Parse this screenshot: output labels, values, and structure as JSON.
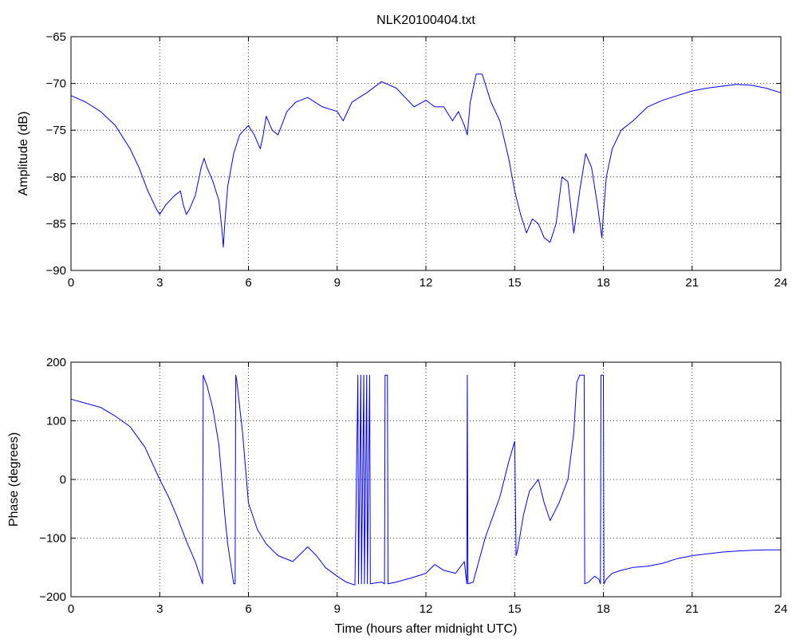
{
  "colors": {
    "series": "#0000ff",
    "axes": "#000000",
    "background": "#ffffff"
  },
  "chart_data": [
    {
      "type": "line",
      "title": "NLK20100404.txt",
      "xlabel": "",
      "ylabel": "Amplitude (dB)",
      "xlim": [
        0,
        24
      ],
      "ylim": [
        -90,
        -65
      ],
      "xticks": [
        "0",
        "3",
        "6",
        "9",
        "12",
        "15",
        "18",
        "21",
        "24"
      ],
      "yticks": [
        "-90",
        "-85",
        "-80",
        "-75",
        "-70",
        "-65"
      ],
      "grid": true,
      "series": [
        {
          "x": [
            0,
            0.5,
            1,
            1.5,
            2,
            2.3,
            2.6,
            2.9,
            3.0,
            3.2,
            3.5,
            3.7,
            3.8,
            3.9,
            4.0,
            4.2,
            4.4,
            4.5,
            4.6,
            4.8,
            5.0,
            5.1,
            5.15,
            5.2,
            5.3,
            5.5,
            5.7,
            6.0,
            6.2,
            6.4,
            6.5,
            6.6,
            6.8,
            7.0,
            7.3,
            7.6,
            8.0,
            8.5,
            9.0,
            9.2,
            9.5,
            10.0,
            10.5,
            11.0,
            11.3,
            11.6,
            12.0,
            12.3,
            12.6,
            12.9,
            13.1,
            13.3,
            13.4,
            13.5,
            13.7,
            13.9,
            14.2,
            14.5,
            14.8,
            15.0,
            15.2,
            15.4,
            15.6,
            15.8,
            16.0,
            16.2,
            16.4,
            16.6,
            16.8,
            17.0,
            17.2,
            17.4,
            17.6,
            17.8,
            17.95,
            18.0,
            18.1,
            18.3,
            18.6,
            19.0,
            19.5,
            20.0,
            20.5,
            21.0,
            21.5,
            22.0,
            22.5,
            23.0,
            23.5,
            24.0
          ],
          "values": [
            -71.3,
            -72.0,
            -73.0,
            -74.5,
            -77.0,
            -79.0,
            -81.5,
            -83.5,
            -84.0,
            -83.0,
            -82.0,
            -81.5,
            -83.0,
            -84.0,
            -83.5,
            -82.0,
            -79.0,
            -78.0,
            -79.0,
            -80.5,
            -82.5,
            -85.5,
            -87.5,
            -85.0,
            -81.0,
            -77.5,
            -75.5,
            -74.5,
            -75.5,
            -77.0,
            -75.5,
            -73.5,
            -75.0,
            -75.5,
            -73.0,
            -72.0,
            -71.5,
            -72.5,
            -73.0,
            -74.0,
            -72.0,
            -71.0,
            -69.8,
            -70.5,
            -71.5,
            -72.5,
            -71.8,
            -72.5,
            -72.5,
            -74.0,
            -73.0,
            -74.5,
            -75.5,
            -72.0,
            -69.0,
            -69.0,
            -72.0,
            -74.0,
            -78.0,
            -81.5,
            -84.0,
            -86.0,
            -84.5,
            -85.0,
            -86.5,
            -87.0,
            -85.0,
            -80.0,
            -80.5,
            -86.0,
            -81.5,
            -77.5,
            -79.0,
            -83.0,
            -86.5,
            -84.0,
            -80.0,
            -77.0,
            -75.0,
            -74.0,
            -72.5,
            -71.8,
            -71.3,
            -70.8,
            -70.5,
            -70.3,
            -70.1,
            -70.2,
            -70.5,
            -71.0
          ]
        }
      ]
    },
    {
      "type": "line",
      "title": "",
      "xlabel": "Time (hours after midnight UTC)",
      "ylabel": "Phase (degrees)",
      "xlim": [
        0,
        24
      ],
      "ylim": [
        -200,
        200
      ],
      "xticks": [
        "0",
        "3",
        "6",
        "9",
        "12",
        "15",
        "18",
        "21",
        "24"
      ],
      "yticks": [
        "-200",
        "-100",
        "0",
        "100",
        "200"
      ],
      "grid": true,
      "series": [
        {
          "x": [
            0,
            0.5,
            1.0,
            1.5,
            2.0,
            2.5,
            3.0,
            3.3,
            3.6,
            3.9,
            4.2,
            4.45,
            4.47,
            4.49,
            4.6,
            4.8,
            5.0,
            5.2,
            5.3,
            5.5,
            5.55,
            5.57,
            5.6,
            5.8,
            6.0,
            6.3,
            6.6,
            7.0,
            7.5,
            7.8,
            8.0,
            8.3,
            8.6,
            9.0,
            9.3,
            9.6,
            9.7,
            9.72,
            9.8,
            9.82,
            9.9,
            9.92,
            10.0,
            10.02,
            10.1,
            10.12,
            10.5,
            10.6,
            10.62,
            10.7,
            10.72,
            11.0,
            11.5,
            12.0,
            12.3,
            12.6,
            13.0,
            13.3,
            13.38,
            13.4,
            13.42,
            13.6,
            14.0,
            14.5,
            14.8,
            15.0,
            15.05,
            15.1,
            15.3,
            15.5,
            15.8,
            16.0,
            16.2,
            16.3,
            16.5,
            16.8,
            17.0,
            17.1,
            17.2,
            17.35,
            17.37,
            17.5,
            17.7,
            17.85,
            17.9,
            17.92,
            18.0,
            18.02,
            18.1,
            18.3,
            18.6,
            19.0,
            19.5,
            20.0,
            20.5,
            21.0,
            21.5,
            22.0,
            22.5,
            23.0,
            23.5,
            24.0
          ],
          "values": [
            137,
            130,
            123,
            108,
            90,
            55,
            0,
            -30,
            -65,
            -105,
            -140,
            -178,
            178,
            175,
            160,
            120,
            60,
            -60,
            -110,
            -178,
            -178,
            178,
            170,
            80,
            -40,
            -85,
            -110,
            -130,
            -140,
            -125,
            -115,
            -130,
            -150,
            -165,
            -175,
            -180,
            178,
            -178,
            178,
            -178,
            178,
            -178,
            178,
            -178,
            178,
            -178,
            -175,
            -178,
            178,
            178,
            -178,
            -175,
            -168,
            -160,
            -145,
            -155,
            -160,
            -140,
            -178,
            178,
            -178,
            -175,
            -100,
            -30,
            30,
            65,
            -130,
            -120,
            -60,
            -20,
            0,
            -40,
            -70,
            -60,
            -40,
            0,
            80,
            165,
            178,
            178,
            -178,
            -175,
            -165,
            -170,
            -178,
            178,
            178,
            -178,
            -170,
            -160,
            -155,
            -150,
            -148,
            -143,
            -135,
            -130,
            -127,
            -124,
            -122,
            -121,
            -120,
            -120
          ]
        }
      ]
    }
  ]
}
